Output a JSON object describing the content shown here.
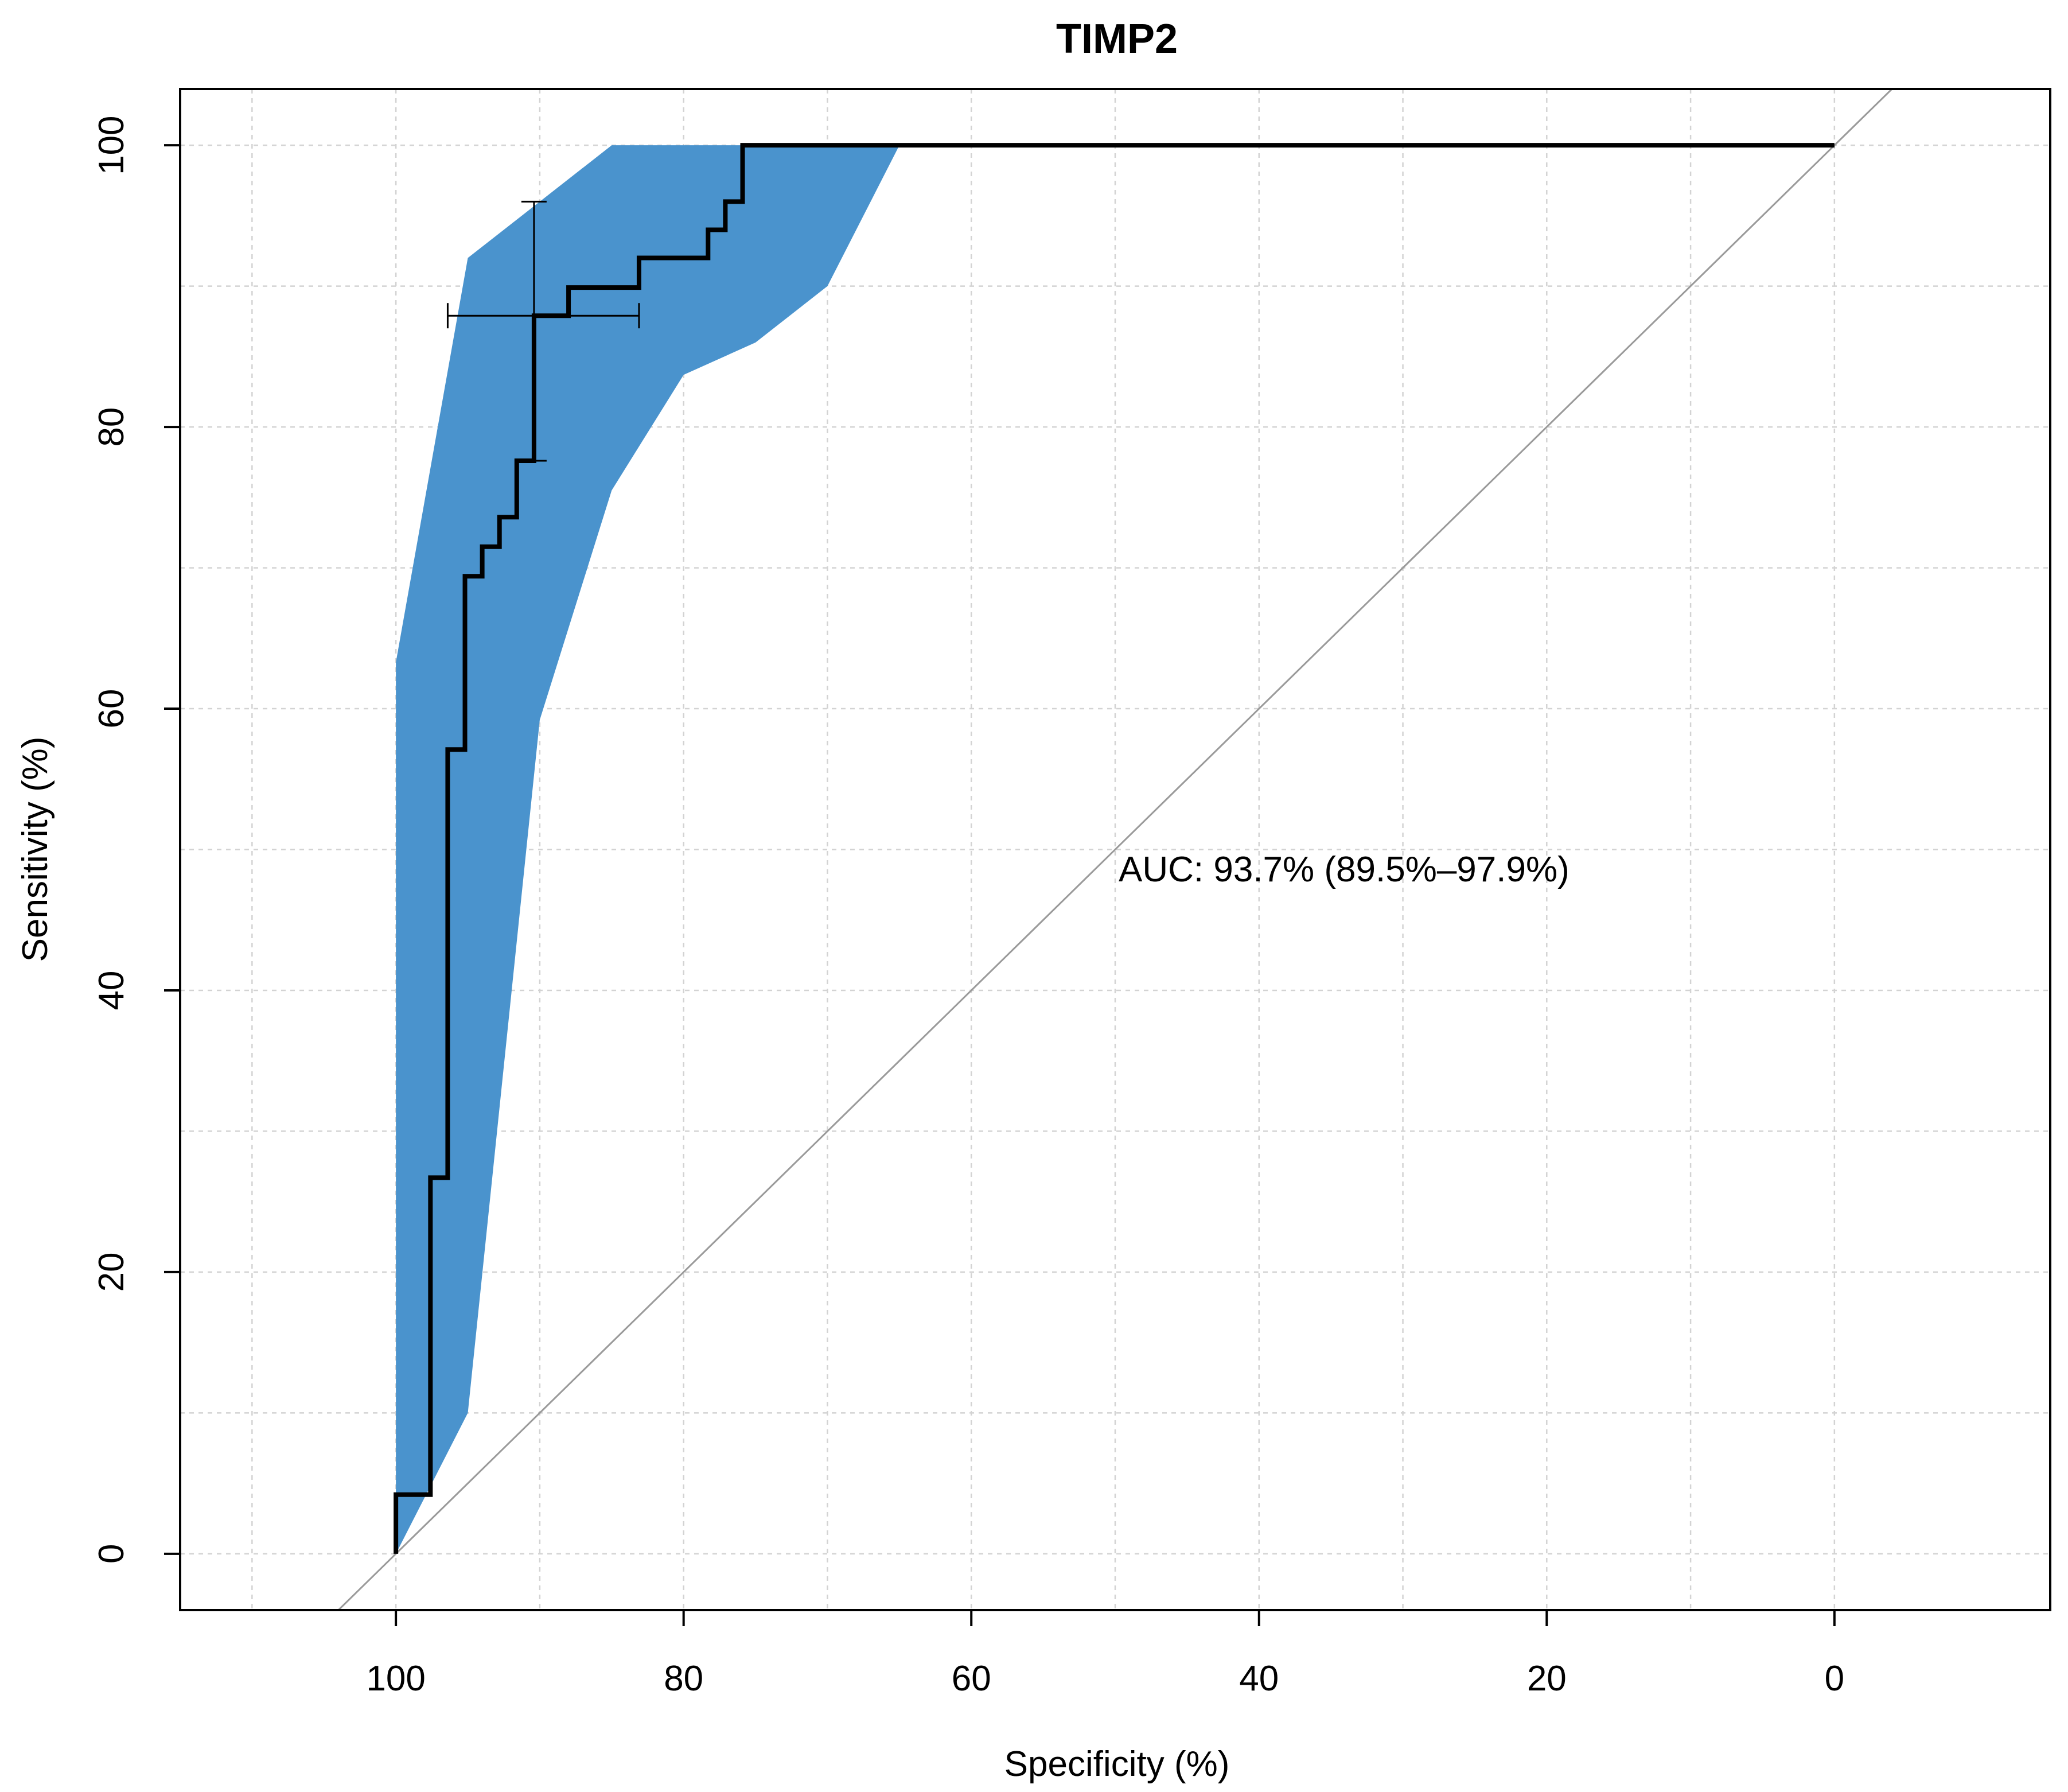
{
  "chart_data": {
    "type": "line",
    "title": "TIMP2",
    "xlabel": "Specificity (%)",
    "ylabel": "Sensitivity (%)",
    "xlim": [
      115,
      -15
    ],
    "ylim": [
      -4,
      104
    ],
    "x_ticks": [
      100,
      80,
      60,
      40,
      20,
      0
    ],
    "y_ticks": [
      0,
      20,
      40,
      60,
      80,
      100
    ],
    "x_tick_labels": [
      "100",
      "80",
      "60",
      "40",
      "20",
      "0"
    ],
    "y_tick_labels": [
      "0",
      "20",
      "40",
      "60",
      "80",
      "100"
    ],
    "x_axis_reversed": true,
    "grid": true,
    "annotation": "AUC: 93.7% (89.5%–97.9%)",
    "auc": 93.7,
    "auc_ci": [
      89.5,
      97.9
    ],
    "colors": {
      "ci_band": "#4a93cd",
      "roc_line": "#000000",
      "grid": "#d3d3d3",
      "diagonal": "#9a9a9a"
    },
    "roc_curve": {
      "specificity": [
        100,
        100,
        97.6,
        97.6,
        96.4,
        96.4,
        95.2,
        95.2,
        94,
        94,
        92.8,
        92.8,
        91.6,
        91.6,
        90.4,
        90.4,
        88,
        88,
        83.1,
        83.1,
        78.3,
        78.3,
        77.1,
        77.1,
        75.9,
        75.9,
        0
      ],
      "sensitivity": [
        0,
        4.2,
        4.2,
        26.7,
        26.7,
        57.1,
        57.1,
        69.4,
        69.4,
        71.5,
        71.5,
        73.6,
        73.6,
        77.6,
        77.6,
        87.9,
        87.9,
        89.9,
        89.9,
        92,
        92,
        94,
        94,
        96,
        96,
        100,
        100
      ]
    },
    "ci_band": {
      "upper": {
        "specificity": [
          100,
          95,
          90,
          85,
          80,
          65,
          0
        ],
        "sensitivity": [
          63.3,
          92,
          96,
          100,
          100,
          100,
          100
        ]
      },
      "lower": {
        "specificity": [
          0,
          65,
          70,
          75,
          80,
          85,
          90,
          95,
          100
        ],
        "sensitivity": [
          100,
          100,
          90,
          86,
          83.7,
          75.5,
          59.2,
          10,
          0
        ]
      }
    },
    "threshold_ci": {
      "specificity": 90.4,
      "sensitivity": 87.9,
      "specificity_range": [
        96.4,
        83.1
      ],
      "sensitivity_range": [
        77.6,
        96
      ]
    },
    "diagonal": {
      "from": [
        104,
        -4
      ],
      "to": [
        -4,
        104
      ]
    }
  }
}
